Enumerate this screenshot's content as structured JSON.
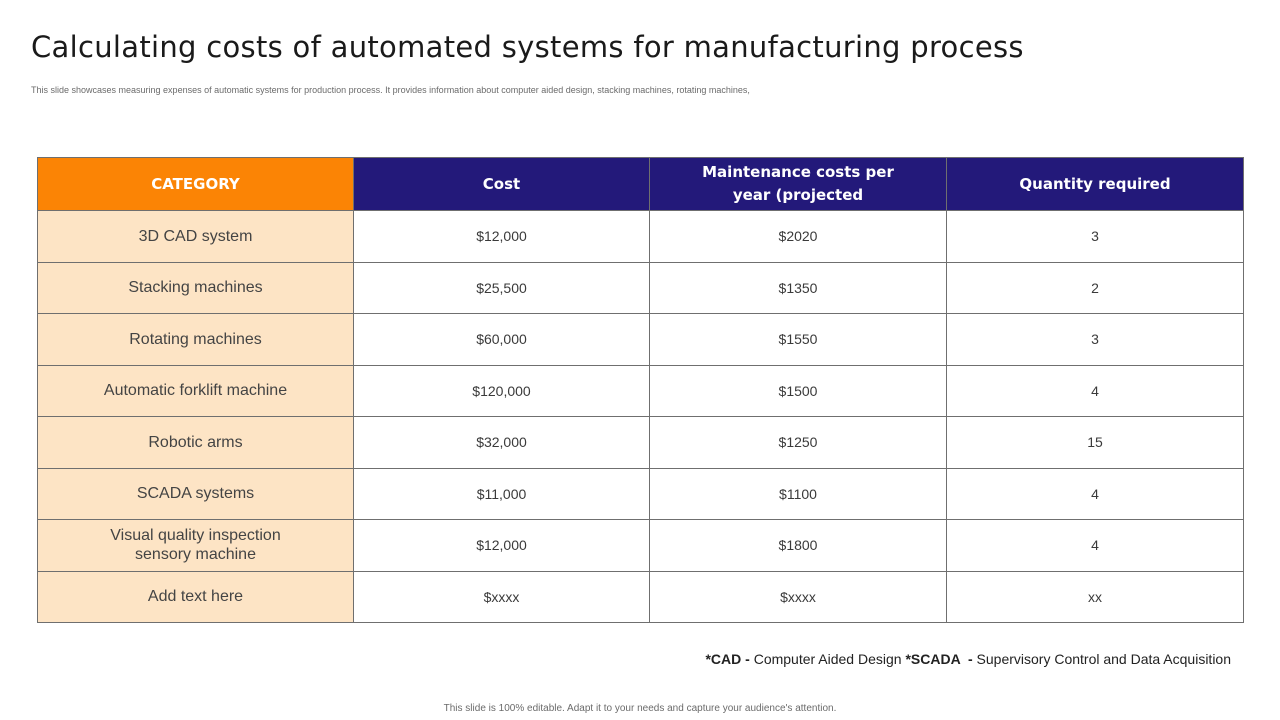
{
  "slide": {
    "title": "Calculating costs of automated systems for manufacturing process",
    "subtitle": "This slide showcases measuring expenses of automatic systems for production process. It provides information about computer aided design, stacking machines, rotating machines,"
  },
  "table": {
    "headers": {
      "category": "CATEGORY",
      "cost": "Cost",
      "maintenance_line1": "Maintenance costs per",
      "maintenance_line2": "year (projected",
      "quantity": "Quantity required"
    },
    "rows": [
      {
        "category": "3D CAD system",
        "cost": "$12,000",
        "maintenance": "$2020",
        "quantity": "3"
      },
      {
        "category": "Stacking machines",
        "cost": "$25,500",
        "maintenance": "$1350",
        "quantity": "2"
      },
      {
        "category": "Rotating machines",
        "cost": "$60,000",
        "maintenance": "$1550",
        "quantity": "3"
      },
      {
        "category": "Automatic forklift machine",
        "cost": "$120,000",
        "maintenance": "$1500",
        "quantity": "4"
      },
      {
        "category": "Robotic arms",
        "cost": "$32,000",
        "maintenance": "$1250",
        "quantity": "15"
      },
      {
        "category": "SCADA systems",
        "cost": "$11,000",
        "maintenance": "$1100",
        "quantity": "4"
      },
      {
        "category_line1": "Visual quality inspection",
        "category_line2": "sensory machine",
        "cost": "$12,000",
        "maintenance": "$1800",
        "quantity": "4"
      },
      {
        "category": "Add text here",
        "cost": "$xxxx",
        "maintenance": "$xxxx",
        "quantity": "xx"
      }
    ]
  },
  "footnote": {
    "cad_abbr": "*CAD",
    "cad_sep": " - ",
    "cad_text": "Computer Aided Design ",
    "scada_abbr": "*SCADA",
    "scada_sep": "  - ",
    "scada_text": "Supervisory Control and Data Acquisition"
  },
  "footer": "This slide is 100% editable. Adapt it to your needs and capture your audience's attention.",
  "colors": {
    "category_header": "#fb8405",
    "column_header": "#23197a",
    "category_cell": "#fde4c5"
  }
}
